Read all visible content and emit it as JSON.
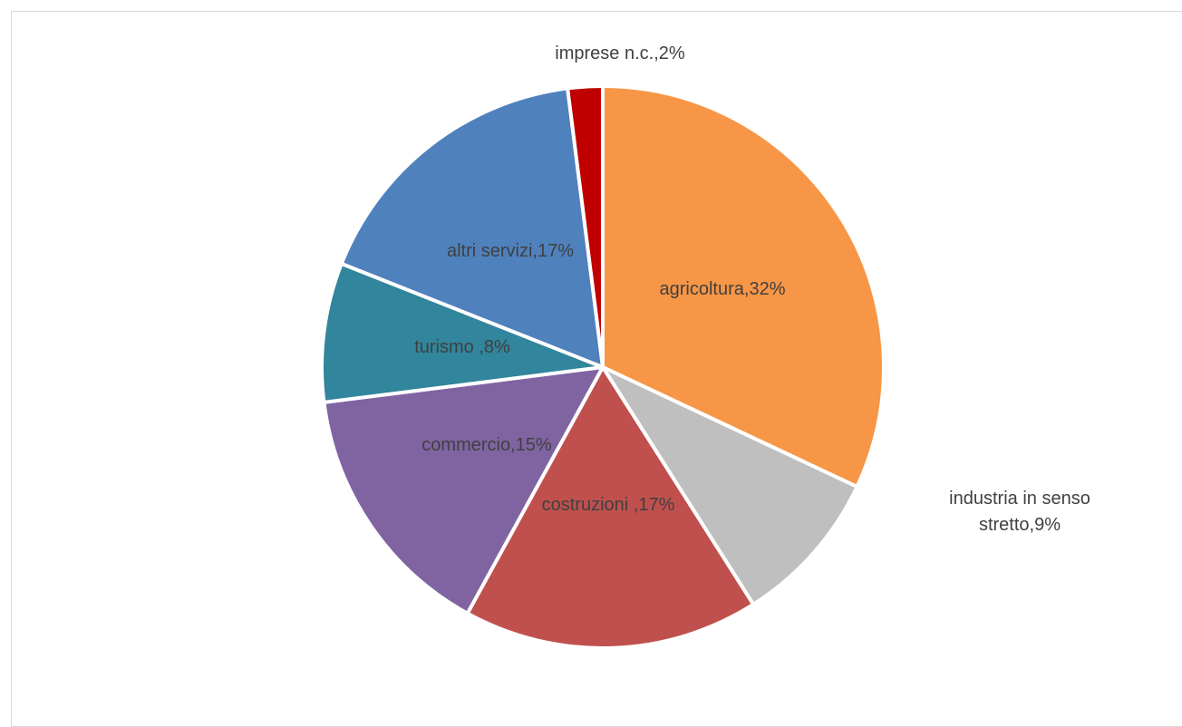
{
  "chart_data": {
    "type": "pie",
    "start_angle_deg": 0,
    "direction": "clockwise",
    "legend": "none",
    "slices": [
      {
        "category": "agricoltura",
        "sep": ",",
        "percent": 32,
        "color": "#F79646",
        "label_position": "inside"
      },
      {
        "category": "industria in senso stretto",
        "sep": ",",
        "percent": 9,
        "color": "#BFBFBF",
        "label_position": "outside"
      },
      {
        "category": "costruzioni ",
        "sep": ",",
        "percent": 17,
        "color": "#C0504D",
        "label_position": "inside"
      },
      {
        "category": "commercio",
        "sep": ",",
        "percent": 15,
        "color": "#8064A2",
        "label_position": "inside"
      },
      {
        "category": "turismo ",
        "sep": ",",
        "percent": 8,
        "color": "#31859C",
        "label_position": "inside"
      },
      {
        "category": "altri servizi",
        "sep": ",",
        "percent": 17,
        "color": "#4F81BD",
        "label_position": "inside"
      },
      {
        "category": "imprese n.c.",
        "sep": ",",
        "percent": 2,
        "color": "#C00000",
        "label_position": "outside"
      }
    ]
  }
}
